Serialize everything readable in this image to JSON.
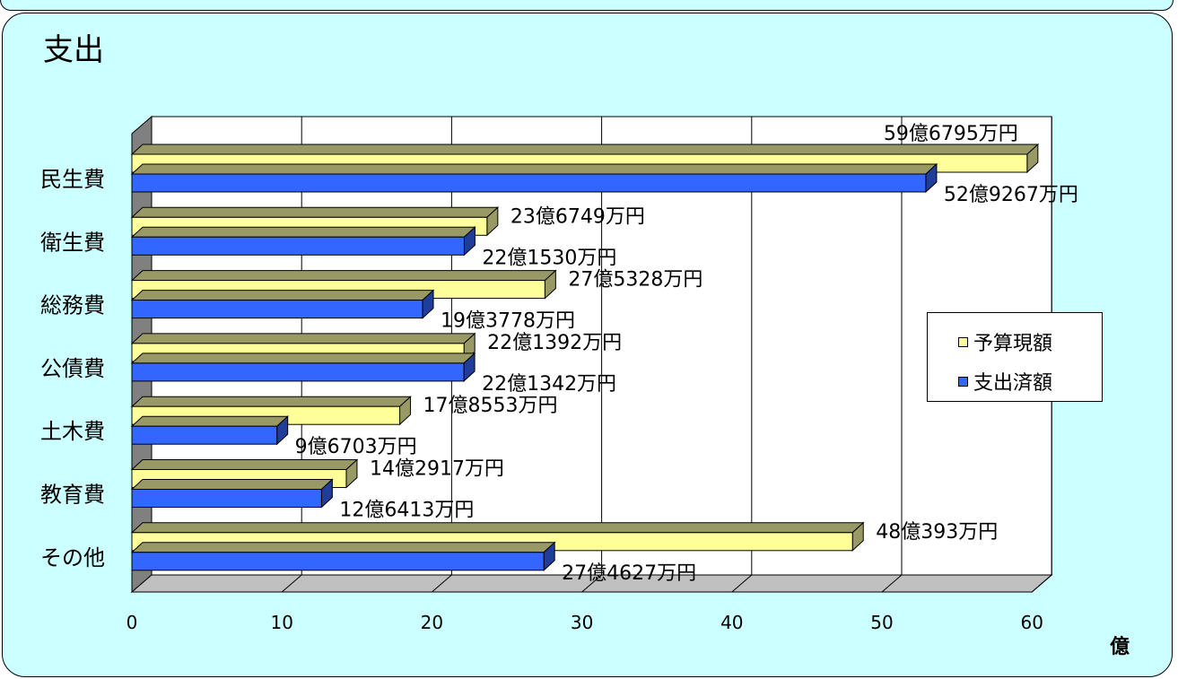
{
  "title": "支出",
  "chart_data": {
    "type": "bar",
    "orientation": "horizontal",
    "categories": [
      "民生費",
      "衛生費",
      "総務費",
      "公債費",
      "土木費",
      "教育費",
      "その他"
    ],
    "series": [
      {
        "name": "予算現額",
        "color": "#ffff99",
        "values": [
          59.6795,
          23.6749,
          27.5328,
          22.1392,
          17.8553,
          14.2917,
          48.0393
        ],
        "labels": [
          "59億6795万円",
          "23億6749万円",
          "27億5328万円",
          "22億1392万円",
          "17億8553万円",
          "14億2917万円",
          "48億393万円"
        ]
      },
      {
        "name": "支出済額",
        "color": "#3366ff",
        "values": [
          52.9267,
          22.153,
          19.3778,
          22.1342,
          9.6703,
          12.6413,
          27.4627
        ],
        "labels": [
          "52億9267万円",
          "22億1530万円",
          "19億3778万円",
          "22億1342万円",
          "9億6703万円",
          "12億6413万円",
          "27億4627万円"
        ]
      }
    ],
    "x_ticks": [
      "0",
      "10",
      "20",
      "30",
      "40",
      "50",
      "60"
    ],
    "xlim": [
      0,
      60
    ],
    "unit": "億",
    "grid": true,
    "legend_position": "right"
  }
}
